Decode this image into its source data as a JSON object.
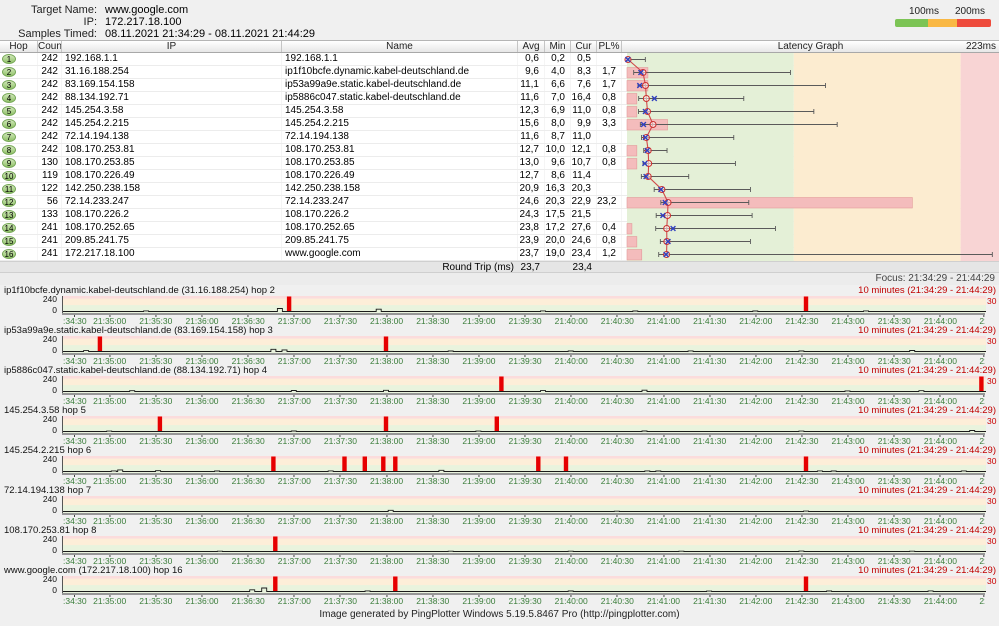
{
  "header": {
    "rows": [
      {
        "label": "Target Name:",
        "value": "www.google.com"
      },
      {
        "label": "IP:",
        "value": "172.217.18.100"
      },
      {
        "label": "Samples Timed:",
        "value": "08.11.2021 21:34:29 - 08.11.2021 21:44:29"
      }
    ]
  },
  "legend": {
    "labels": [
      "100ms",
      "200ms"
    ],
    "colors": {
      "green": "#7cc455",
      "orange": "#f9b844",
      "red": "#ee4b3c"
    }
  },
  "table": {
    "columns": [
      "Hop",
      "Count",
      "IP",
      "Name",
      "Avg",
      "Min",
      "Cur",
      "PL%",
      "Latency Graph"
    ],
    "graph_max_label": "223ms",
    "focus": "Focus: 21:34:29 - 21:44:29",
    "round_trip": {
      "label": "Round Trip (ms)",
      "avg": "23,7",
      "cur": "23,4"
    },
    "scale": {
      "max_ms": 223,
      "zone_bounds_ms": [
        100,
        200
      ],
      "zone_colors": [
        "#e4f0d7",
        "#fcecd0",
        "#f8d4d4"
      ]
    },
    "rows": [
      {
        "hop": "1",
        "count": "242",
        "ip": "192.168.1.1",
        "name": "192.168.1.1",
        "avg": "0,6",
        "min": "0,2",
        "cur": "0,5",
        "pl": "",
        "max_ms": 11
      },
      {
        "hop": "2",
        "count": "242",
        "ip": "31.16.188.254",
        "name": "ip1f10bcfe.dynamic.kabel-deutschland.de",
        "avg": "9,6",
        "min": "4,0",
        "cur": "8,3",
        "pl": "1,7",
        "max_ms": 98
      },
      {
        "hop": "3",
        "count": "242",
        "ip": "83.169.154.158",
        "name": "ip53a99a9e.static.kabel-deutschland.de",
        "avg": "11,1",
        "min": "6,6",
        "cur": "7,6",
        "pl": "1,7",
        "max_ms": 119
      },
      {
        "hop": "4",
        "count": "242",
        "ip": "88.134.192.71",
        "name": "ip5886c047.static.kabel-deutschland.de",
        "avg": "11,6",
        "min": "7,0",
        "cur": "16,4",
        "pl": "0,8",
        "max_ms": 70
      },
      {
        "hop": "5",
        "count": "242",
        "ip": "145.254.3.58",
        "name": "145.254.3.58",
        "avg": "12,3",
        "min": "6,9",
        "cur": "11,0",
        "pl": "0,8",
        "max_ms": 112
      },
      {
        "hop": "6",
        "count": "242",
        "ip": "145.254.2.215",
        "name": "145.254.2.215",
        "avg": "15,6",
        "min": "8,0",
        "cur": "9,9",
        "pl": "3,3",
        "max_ms": 126
      },
      {
        "hop": "7",
        "count": "242",
        "ip": "72.14.194.138",
        "name": "72.14.194.138",
        "avg": "11,6",
        "min": "8,7",
        "cur": "11,0",
        "pl": "",
        "max_ms": 64
      },
      {
        "hop": "8",
        "count": "242",
        "ip": "108.170.253.81",
        "name": "108.170.253.81",
        "avg": "12,7",
        "min": "10,0",
        "cur": "12,1",
        "pl": "0,8",
        "max_ms": 24
      },
      {
        "hop": "9",
        "count": "130",
        "ip": "108.170.253.85",
        "name": "108.170.253.85",
        "avg": "13,0",
        "min": "9,6",
        "cur": "10,7",
        "pl": "0,8",
        "max_ms": 65
      },
      {
        "hop": "10",
        "count": "119",
        "ip": "108.170.226.49",
        "name": "108.170.226.49",
        "avg": "12,7",
        "min": "8,6",
        "cur": "11,4",
        "pl": "",
        "max_ms": 37
      },
      {
        "hop": "11",
        "count": "122",
        "ip": "142.250.238.158",
        "name": "142.250.238.158",
        "avg": "20,9",
        "min": "16,3",
        "cur": "20,3",
        "pl": "",
        "max_ms": 74
      },
      {
        "hop": "12",
        "count": "56",
        "ip": "72.14.233.247",
        "name": "72.14.233.247",
        "avg": "24,6",
        "min": "20,3",
        "cur": "22,9",
        "pl": "23,2",
        "max_ms": 73
      },
      {
        "hop": "13",
        "count": "133",
        "ip": "108.170.226.2",
        "name": "108.170.226.2",
        "avg": "24,3",
        "min": "17,5",
        "cur": "21,5",
        "pl": "",
        "max_ms": 75
      },
      {
        "hop": "14",
        "count": "241",
        "ip": "108.170.252.65",
        "name": "108.170.252.65",
        "avg": "23,8",
        "min": "17,2",
        "cur": "27,6",
        "pl": "0,4",
        "max_ms": 89
      },
      {
        "hop": "15",
        "count": "241",
        "ip": "209.85.241.75",
        "name": "209.85.241.75",
        "avg": "23,9",
        "min": "20,0",
        "cur": "24,6",
        "pl": "0,8",
        "max_ms": 74
      },
      {
        "hop": "16",
        "count": "241",
        "ip": "172.217.18.100",
        "name": "www.google.com",
        "avg": "23,7",
        "min": "19,0",
        "cur": "23,4",
        "pl": "1,2",
        "max_ms": 219
      }
    ]
  },
  "timeline": {
    "duration_label": "10 minutes (21:34:29 - 21:44:29)",
    "y_top": "240",
    "y_bottom": "0",
    "y_right": "30",
    "scale_max_ms": 240,
    "band_colors": {
      "green": "#e9f3dd",
      "orange": "#fdeed8",
      "red": "#fbdcdc"
    },
    "x_labels": [
      ":34:30",
      "21:35:00",
      "21:35:30",
      "21:36:00",
      "21:36:30",
      "21:37:00",
      "21:37:30",
      "21:38:00",
      "21:38:30",
      "21:39:00",
      "21:39:30",
      "21:40:00",
      "21:40:30",
      "21:41:00",
      "21:41:30",
      "21:42:00",
      "21:42:30",
      "21:43:00",
      "21:43:30",
      "21:44:00",
      "21"
    ],
    "graphs": [
      {
        "title": "ip1f10bcfe.dynamic.kabel-deutschland.de (31.16.188.254) hop 2",
        "loss": [
          0.245,
          0.805
        ],
        "spikes": [
          [
            0.09,
            10
          ],
          [
            0.235,
            46
          ],
          [
            0.342,
            36
          ],
          [
            0.52,
            10
          ],
          [
            0.62,
            8
          ],
          [
            0.75,
            8
          ],
          [
            0.87,
            10
          ]
        ]
      },
      {
        "title": "ip53a99a9e.static.kabel-deutschland.de (83.169.154.158) hop 3",
        "loss": [
          0.04,
          0.35
        ],
        "spikes": [
          [
            0.025,
            14
          ],
          [
            0.228,
            34
          ],
          [
            0.24,
            24
          ],
          [
            0.42,
            8
          ],
          [
            0.55,
            8
          ],
          [
            0.68,
            10
          ],
          [
            0.8,
            8
          ],
          [
            0.92,
            16
          ]
        ]
      },
      {
        "title": "ip5886c047.static.kabel-deutschland.de (88.134.192.71) hop 4",
        "loss": [
          0.475,
          0.995
        ],
        "spikes": [
          [
            0.075,
            12
          ],
          [
            0.25,
            16
          ],
          [
            0.35,
            18
          ],
          [
            0.52,
            14
          ],
          [
            0.63,
            20
          ],
          [
            0.85,
            10
          ],
          [
            0.93,
            12
          ]
        ]
      },
      {
        "title": "145.254.3.58 hop 5",
        "loss": [
          0.105,
          0.35,
          0.47
        ],
        "spikes": [
          [
            0.05,
            6
          ],
          [
            0.25,
            8
          ],
          [
            0.45,
            6
          ],
          [
            0.63,
            8
          ],
          [
            0.8,
            6
          ],
          [
            0.985,
            16
          ]
        ]
      },
      {
        "title": "145.254.2.215 hop 6",
        "loss": [
          0.228,
          0.305,
          0.327,
          0.347,
          0.36,
          0.515,
          0.545,
          0.805
        ],
        "spikes": [
          [
            0.055,
            10
          ],
          [
            0.062,
            24
          ],
          [
            0.103,
            12
          ],
          [
            0.167,
            8
          ],
          [
            0.29,
            10
          ],
          [
            0.41,
            18
          ],
          [
            0.633,
            10
          ],
          [
            0.645,
            8
          ],
          [
            0.82,
            10
          ],
          [
            0.835,
            8
          ],
          [
            0.976,
            10
          ]
        ]
      },
      {
        "title": "72.14.194.138 hop 7",
        "loss": [],
        "spikes": [
          [
            0.355,
            18
          ],
          [
            0.6,
            4
          ],
          [
            0.805,
            6
          ]
        ]
      },
      {
        "title": "108.170.253.81 hop 8",
        "loss": [
          0.23
        ],
        "spikes": [
          [
            0.17,
            4
          ],
          [
            0.42,
            5
          ],
          [
            0.55,
            4
          ],
          [
            0.67,
            4
          ],
          [
            0.8,
            6
          ],
          [
            0.92,
            4
          ]
        ]
      },
      {
        "title": "www.google.com (172.217.18.100) hop 16",
        "loss": [
          0.23,
          0.36,
          0.805
        ],
        "spikes": [
          [
            0.205,
            26
          ],
          [
            0.218,
            54
          ],
          [
            0.33,
            10
          ],
          [
            0.55,
            8
          ],
          [
            0.7,
            6
          ],
          [
            0.83,
            8
          ],
          [
            0.94,
            10
          ]
        ]
      }
    ]
  },
  "footer": "Image generated by PingPlotter Windows 5.19.5.8467 Pro (http://pingplotter.com)"
}
